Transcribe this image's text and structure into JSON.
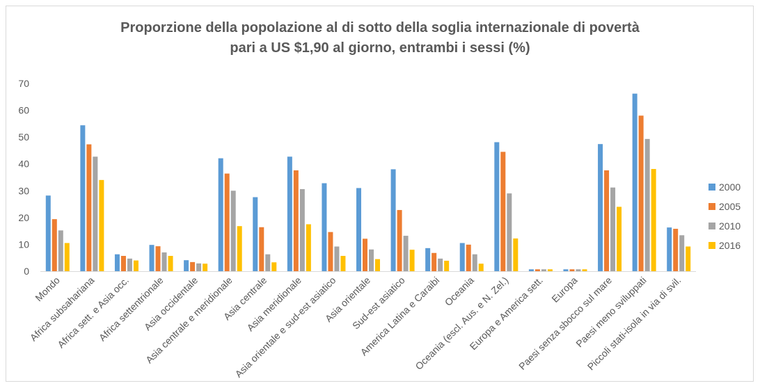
{
  "chart_data": {
    "type": "bar",
    "title_line1": "Proporzione della popolazione al di sotto della soglia internazionale di povertà",
    "title_line2": "pari a US $1,90 al giorno, entrambi i sessi (%)",
    "xlabel": "",
    "ylabel": "",
    "ylim": [
      0,
      70
    ],
    "yticks": [
      "0",
      "10",
      "20",
      "30",
      "40",
      "50",
      "60",
      "70"
    ],
    "grid": false,
    "legend_position": "right",
    "categories": [
      "Mondo",
      "Africa subsahariana",
      "Africa sett. e Asia occ.",
      "Africa settentrionale",
      "Asia occidentale",
      "Asia centrale e meridionale",
      "Asia centrale",
      "Asia meridionale",
      "Asia orientale e sud-est asiatico",
      "Asia orientale",
      "Sud-est asiatico",
      "America Latina e Caraibi",
      "Oceania",
      "Oceania (escl. Aus. e N. Zel.)",
      "Europa e America sett.",
      "Europa",
      "Paesi senza sbocco sul mare",
      "Paesi meno sviluppati",
      "Piccoli stati-isola in via di svil."
    ],
    "series": [
      {
        "name": "2000",
        "color": "#5b9bd5",
        "values": [
          28.2,
          54.4,
          6.3,
          9.8,
          4.1,
          42.1,
          27.6,
          42.7,
          32.8,
          31.0,
          38.0,
          8.6,
          10.5,
          48.1,
          0.7,
          0.7,
          47.4,
          66.2,
          16.3
        ]
      },
      {
        "name": "2005",
        "color": "#ed7d31",
        "values": [
          19.4,
          47.3,
          5.7,
          9.3,
          3.4,
          36.4,
          16.4,
          37.6,
          14.6,
          12.1,
          22.8,
          6.8,
          9.9,
          44.5,
          0.7,
          0.7,
          37.6,
          58.0,
          15.8
        ]
      },
      {
        "name": "2010",
        "color": "#a5a5a5",
        "values": [
          15.2,
          42.7,
          4.7,
          7.0,
          2.9,
          30.0,
          6.3,
          30.6,
          9.2,
          8.1,
          13.2,
          4.7,
          6.3,
          29.0,
          0.7,
          0.7,
          31.2,
          49.3,
          13.4
        ]
      },
      {
        "name": "2016",
        "color": "#ffc000",
        "values": [
          10.5,
          34.0,
          4.0,
          5.7,
          2.8,
          16.8,
          3.3,
          17.5,
          5.7,
          4.5,
          8.0,
          3.9,
          2.8,
          12.2,
          0.7,
          0.7,
          24.0,
          38.1,
          9.2
        ]
      }
    ]
  }
}
